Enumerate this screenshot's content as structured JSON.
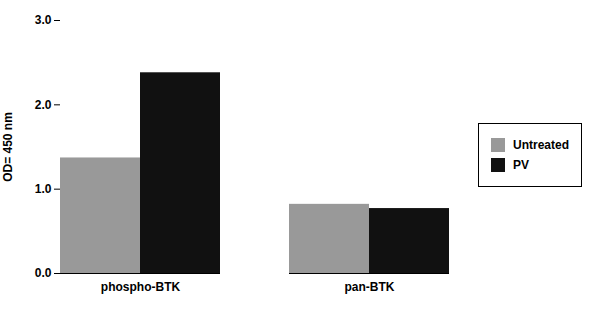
{
  "chart_data": {
    "type": "bar",
    "categories": [
      "phospho-BTK",
      "pan-BTK"
    ],
    "series": [
      {
        "name": "Untreated",
        "color": "#999999",
        "values": [
          1.37,
          0.82
        ]
      },
      {
        "name": "PV",
        "color": "#111111",
        "values": [
          2.38,
          0.77
        ]
      }
    ],
    "ylabel": "OD= 450 nm",
    "ylim": [
      0,
      3
    ],
    "yticks": [
      0,
      1,
      2,
      3
    ],
    "legend": "right"
  }
}
